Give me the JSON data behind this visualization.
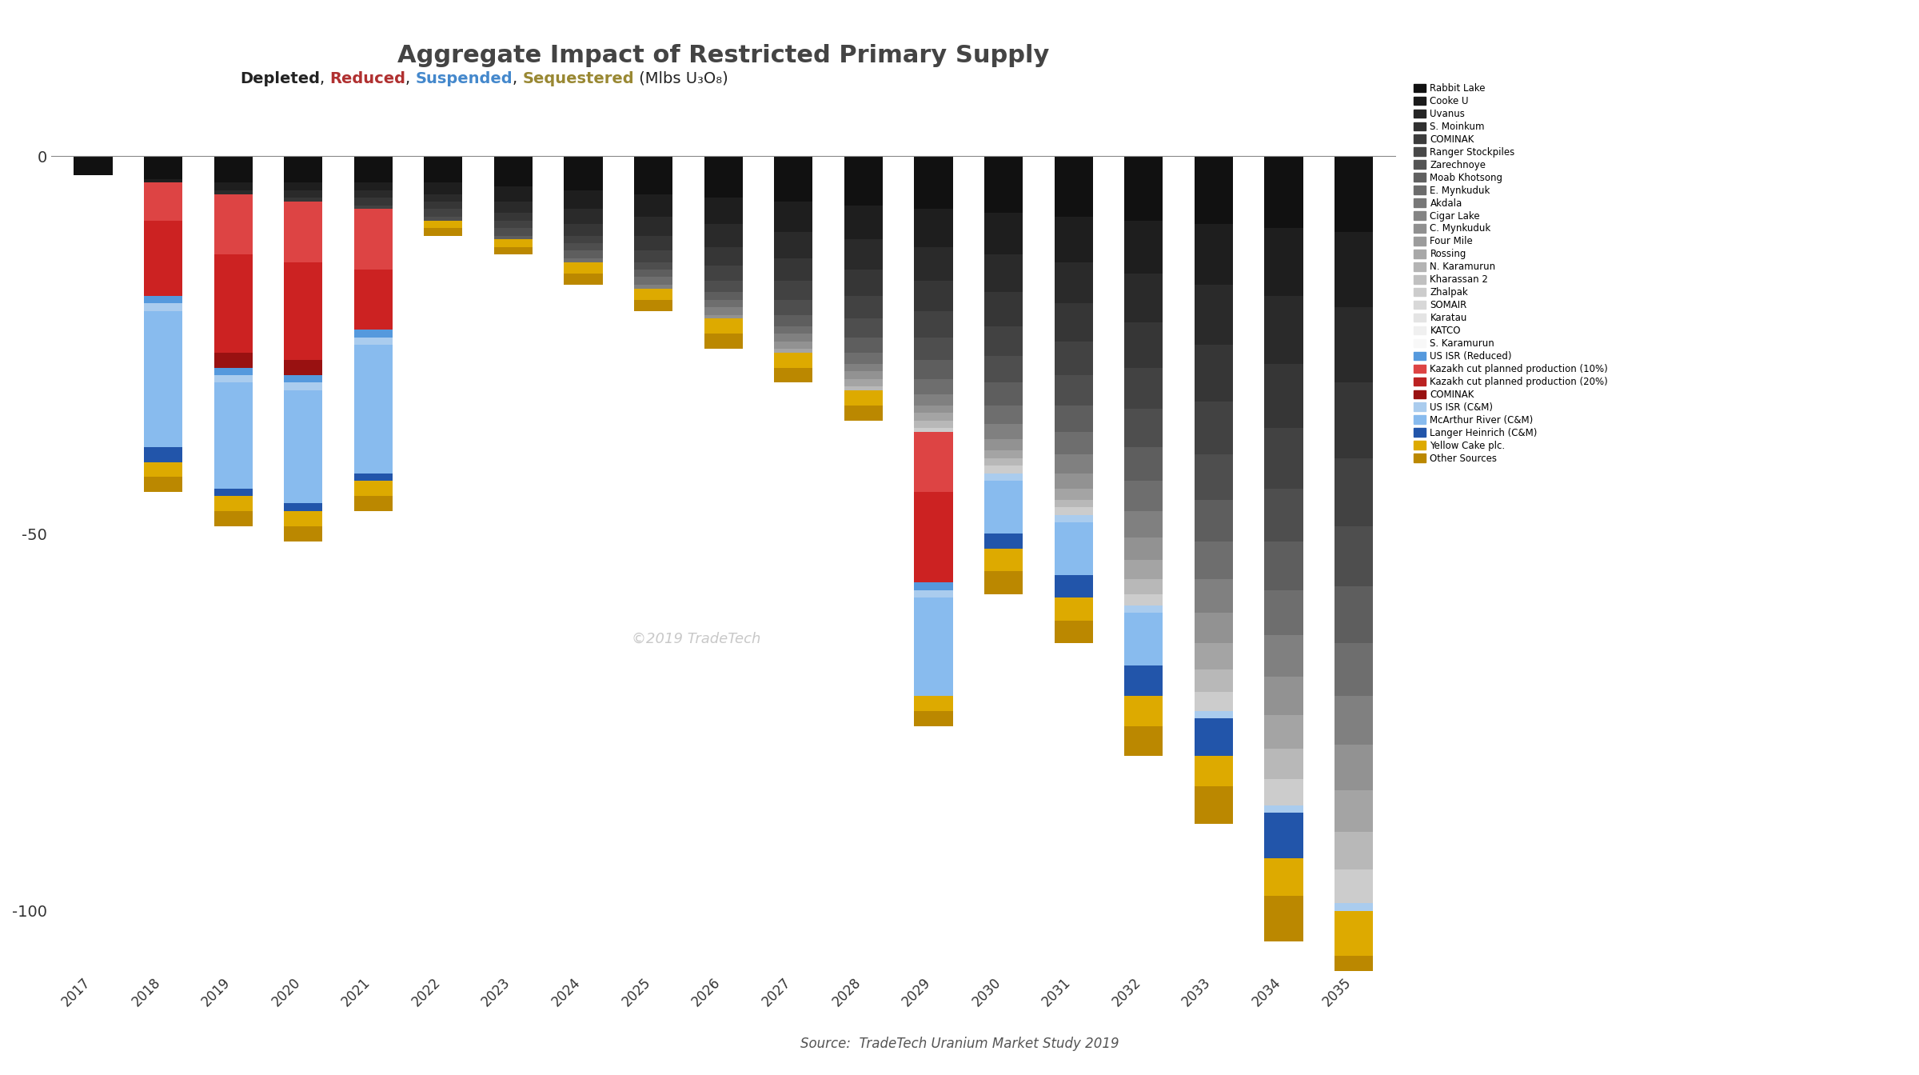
{
  "title": "Aggregate Impact of Restricted Primary Supply",
  "source": "Source:  TradeTech Uranium Market Study 2019",
  "watermark": "©2019 TradeTech",
  "years": [
    2017,
    2018,
    2019,
    2020,
    2021,
    2022,
    2023,
    2024,
    2025,
    2026,
    2027,
    2028,
    2029,
    2030,
    2031,
    2032,
    2033,
    2034,
    2035
  ],
  "ylim": [
    -108,
    8
  ],
  "yticks": [
    0,
    -50,
    -100
  ],
  "background_color": "#ffffff",
  "subtitle_parts": [
    {
      "text": "Depleted",
      "color": "#222222",
      "weight": "bold"
    },
    {
      "text": ", ",
      "color": "#222222",
      "weight": "normal"
    },
    {
      "text": "Reduced",
      "color": "#b03030",
      "weight": "bold"
    },
    {
      "text": ", ",
      "color": "#222222",
      "weight": "normal"
    },
    {
      "text": "Suspended",
      "color": "#4488cc",
      "weight": "bold"
    },
    {
      "text": ", ",
      "color": "#222222",
      "weight": "normal"
    },
    {
      "text": "Sequestered",
      "color": "#998833",
      "weight": "bold"
    },
    {
      "text": " (Mlbs U₃O₈)",
      "color": "#222222",
      "weight": "normal"
    }
  ],
  "legend_labels": [
    "Rabbit Lake",
    "Cooke U",
    "Uvanus",
    "S. Moinkum",
    "COMINAK",
    "Ranger Stockpiles",
    "Zarechnoye",
    "Moab Khotsong",
    "E. Mynkuduk",
    "Akdala",
    "Cigar Lake",
    "C. Mynkuduk",
    "Four Mile",
    "Rossing",
    "N. Karamurun",
    "Kharassan 2",
    "Zhalpak",
    "SOMAIR",
    "Karatau",
    "KATCO",
    "S. Karamurun",
    "US ISR (Reduced)",
    "Kazakh cut planned production (10%)",
    "Kazakh cut planned production (20%)",
    "COMINAK",
    "US ISR (C&M)",
    "McArthur River (C&M)",
    "Langer Heinrich (C&M)",
    "Yellow Cake plc.",
    "Other Sources"
  ],
  "legend_colors": [
    "#111111",
    "#1a1a1a",
    "#252525",
    "#303030",
    "#3c3c3c",
    "#484848",
    "#545454",
    "#606060",
    "#6c6c6c",
    "#787878",
    "#848484",
    "#909090",
    "#9c9c9c",
    "#a8a8a8",
    "#b4b4b4",
    "#c0c0c0",
    "#cccccc",
    "#d8d8d8",
    "#e4e4e4",
    "#f0f0f0",
    "#f8f8f8",
    "#5599dd",
    "#dd4444",
    "#bb2222",
    "#991111",
    "#aaccee",
    "#88bbee",
    "#2255aa",
    "#ddaa00",
    "#bb8800"
  ],
  "segments": {
    "depleted_black": [
      -2.5,
      -3,
      -3.5,
      -3.5,
      -3.5,
      -3.5,
      -4,
      -4.5,
      -5,
      -5.5,
      -6,
      -6.5,
      -7,
      -7.5,
      -8,
      -8.5,
      -9,
      -9.5,
      -10
    ],
    "depleted_dark1": [
      0,
      -0.5,
      -1,
      -1,
      -1,
      -1.5,
      -2,
      -2.5,
      -3,
      -3.5,
      -4,
      -4.5,
      -5,
      -5.5,
      -6,
      -7,
      -8,
      -9,
      -10
    ],
    "depleted_dark2": [
      0,
      0,
      -0.5,
      -1,
      -1,
      -1,
      -1.5,
      -2,
      -2.5,
      -3,
      -3.5,
      -4,
      -4.5,
      -5,
      -5.5,
      -6.5,
      -8,
      -9,
      -10
    ],
    "depleted_dark3": [
      0,
      0,
      0,
      -0.5,
      -1,
      -1,
      -1,
      -1.5,
      -2,
      -2.5,
      -3,
      -3.5,
      -4,
      -4.5,
      -5,
      -6,
      -7.5,
      -8.5,
      -10
    ],
    "depleted_dark4": [
      0,
      0,
      0,
      0,
      -0.5,
      -1,
      -1,
      -1,
      -1.5,
      -2,
      -2.5,
      -3,
      -3.5,
      -4,
      -4.5,
      -5.5,
      -7,
      -8,
      -9
    ],
    "depleted_med1": [
      0,
      0,
      0,
      0,
      0,
      -0.5,
      -1,
      -1,
      -1,
      -1.5,
      -2,
      -2.5,
      -3,
      -3.5,
      -4,
      -5,
      -6,
      -7,
      -8
    ],
    "depleted_med2": [
      0,
      0,
      0,
      0,
      0,
      0,
      -0.5,
      -1,
      -1,
      -1,
      -1.5,
      -2,
      -2.5,
      -3,
      -3.5,
      -4.5,
      -5.5,
      -6.5,
      -7.5
    ],
    "depleted_med3": [
      0,
      0,
      0,
      0,
      0,
      0,
      0,
      -0.5,
      -1,
      -1,
      -1,
      -1.5,
      -2,
      -2.5,
      -3,
      -4,
      -5,
      -6,
      -7
    ],
    "depleted_light1": [
      0,
      0,
      0,
      0,
      0,
      0,
      0,
      0,
      -0.5,
      -1,
      -1,
      -1,
      -1.5,
      -2,
      -2.5,
      -3.5,
      -4.5,
      -5.5,
      -6.5
    ],
    "depleted_light2": [
      0,
      0,
      0,
      0,
      0,
      0,
      0,
      0,
      0,
      -0.5,
      -1,
      -1,
      -1,
      -1.5,
      -2,
      -3,
      -4,
      -5,
      -6
    ],
    "depleted_light3": [
      0,
      0,
      0,
      0,
      0,
      0,
      0,
      0,
      0,
      0,
      -0.5,
      -1,
      -1,
      -1,
      -1.5,
      -2.5,
      -3.5,
      -4.5,
      -5.5
    ],
    "depleted_vlight1": [
      0,
      0,
      0,
      0,
      0,
      0,
      0,
      0,
      0,
      0,
      0,
      -0.5,
      -1,
      -1,
      -1,
      -2,
      -3,
      -4,
      -5
    ],
    "depleted_vlight2": [
      0,
      0,
      0,
      0,
      0,
      0,
      0,
      0,
      0,
      0,
      0,
      0,
      -0.5,
      -1,
      -1,
      -1.5,
      -2.5,
      -3.5,
      -4.5
    ],
    "kazakh10": [
      0,
      -5,
      -8,
      -8,
      -8,
      0,
      0,
      0,
      0,
      0,
      0,
      0,
      -8,
      0,
      0,
      0,
      0,
      0,
      0
    ],
    "kazakh20": [
      0,
      -10,
      -13,
      -13,
      -8,
      0,
      0,
      0,
      0,
      0,
      0,
      0,
      -12,
      0,
      0,
      0,
      0,
      0,
      0
    ],
    "cominak_red": [
      0,
      0,
      -2,
      -2,
      0,
      0,
      0,
      0,
      0,
      0,
      0,
      0,
      0,
      0,
      0,
      0,
      0,
      0,
      0
    ],
    "us_isr_reduced": [
      0,
      -1,
      -1,
      -1,
      -1,
      0,
      0,
      0,
      0,
      0,
      0,
      0,
      -1,
      0,
      0,
      0,
      0,
      0,
      0
    ],
    "us_isr_cm": [
      0,
      -1,
      -1,
      -1,
      -1,
      0,
      0,
      0,
      0,
      0,
      0,
      0,
      -1,
      -1,
      -1,
      -1,
      -1,
      -1,
      -1
    ],
    "mcarthur": [
      0,
      -18,
      -14,
      -15,
      -17,
      0,
      0,
      0,
      0,
      0,
      0,
      0,
      -13,
      -7,
      -7,
      -7,
      0,
      0,
      0
    ],
    "langer": [
      0,
      -2,
      -1,
      -1,
      -1,
      0,
      0,
      0,
      0,
      0,
      0,
      0,
      0,
      -2,
      -3,
      -4,
      -5,
      -6,
      0
    ],
    "yellow_cake": [
      0,
      -2,
      -2,
      -2,
      -2,
      -1,
      -1,
      -1.5,
      -1.5,
      -2,
      -2,
      -2,
      -2,
      -3,
      -3,
      -4,
      -4,
      -5,
      -6
    ],
    "other_sources": [
      0,
      -2,
      -2,
      -2,
      -2,
      -1,
      -1,
      -1.5,
      -1.5,
      -2,
      -2,
      -2,
      -2,
      -3,
      -3,
      -4,
      -5,
      -6,
      -8
    ]
  },
  "seg_colors": {
    "depleted_black": "#111111",
    "depleted_dark1": "#1e1e1e",
    "depleted_dark2": "#2a2a2a",
    "depleted_dark3": "#363636",
    "depleted_dark4": "#424242",
    "depleted_med1": "#4e4e4e",
    "depleted_med2": "#5e5e5e",
    "depleted_med3": "#6e6e6e",
    "depleted_light1": "#808080",
    "depleted_light2": "#929292",
    "depleted_light3": "#a4a4a4",
    "depleted_vlight1": "#b8b8b8",
    "depleted_vlight2": "#cccccc",
    "kazakh10": "#dd4444",
    "kazakh20": "#cc2222",
    "cominak_red": "#991111",
    "us_isr_reduced": "#5599dd",
    "us_isr_cm": "#aaccee",
    "mcarthur": "#88bbee",
    "langer": "#2255aa",
    "yellow_cake": "#ddaa00",
    "other_sources": "#bb8800"
  }
}
